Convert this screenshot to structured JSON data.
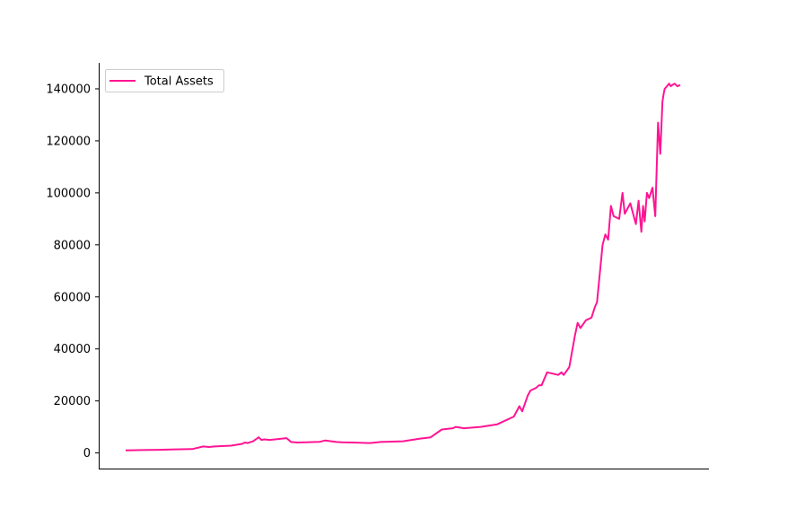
{
  "chart_data": {
    "type": "line",
    "title": "",
    "xlabel": "",
    "ylabel": "",
    "ylim": [
      -6000,
      150000
    ],
    "yticks": [
      0,
      20000,
      40000,
      60000,
      80000,
      100000,
      120000,
      140000
    ],
    "ytick_labels": [
      "0",
      "20000",
      "40000",
      "60000",
      "80000",
      "100000",
      "120000",
      "140000"
    ],
    "x_ticks_visible": false,
    "xlim": [
      0,
      100
    ],
    "grid": false,
    "legend": {
      "placement": "upper-left",
      "entries": [
        "Total Assets"
      ]
    },
    "series": [
      {
        "name": "Total Assets",
        "color": "#ff1493",
        "x": [
          0,
          3,
          6,
          9,
          12,
          14,
          15,
          16,
          19,
          21,
          21.5,
          22,
          23,
          24,
          24.5,
          25,
          26,
          29,
          29.4,
          29.8,
          31,
          35,
          36,
          38,
          39,
          41,
          44,
          46,
          50,
          53,
          55,
          57,
          59,
          59.5,
          61,
          64,
          67,
          70,
          71,
          71.5,
          72,
          72.5,
          73,
          74,
          74.5,
          75,
          76,
          78,
          78.6,
          79,
          80,
          81,
          81.5,
          82,
          83,
          84,
          84.6,
          85,
          86,
          86.5,
          87,
          87.5,
          88,
          89,
          89.6,
          90,
          91,
          92,
          92.5,
          93,
          93.3,
          93.6,
          94,
          94.4,
          95,
          95.5,
          96,
          96.4,
          96.8,
          97,
          97.2,
          97.6,
          98,
          98.3,
          98.6,
          99,
          99.5,
          100
        ],
        "y": [
          1000,
          1100,
          1200,
          1400,
          1500,
          2500,
          2300,
          2500,
          2800,
          3500,
          4000,
          3800,
          4500,
          6000,
          5000,
          5200,
          5000,
          5700,
          5000,
          4200,
          4000,
          4300,
          4800,
          4200,
          4100,
          4000,
          3800,
          4200,
          4500,
          5500,
          6000,
          9000,
          9500,
          10000,
          9500,
          10000,
          11000,
          14000,
          18000,
          16000,
          19000,
          22000,
          24000,
          25000,
          26000,
          26000,
          31000,
          30000,
          31000,
          30000,
          33000,
          45000,
          50000,
          48000,
          51000,
          52000,
          56000,
          58000,
          80000,
          84000,
          82000,
          95000,
          91000,
          90000,
          100000,
          92000,
          96000,
          88000,
          97000,
          85000,
          95000,
          89000,
          100000,
          98000,
          102000,
          91000,
          127000,
          115000,
          135000,
          138000,
          140000,
          141000,
          142000,
          141000,
          141500,
          142000,
          141000,
          141500
        ]
      }
    ]
  }
}
